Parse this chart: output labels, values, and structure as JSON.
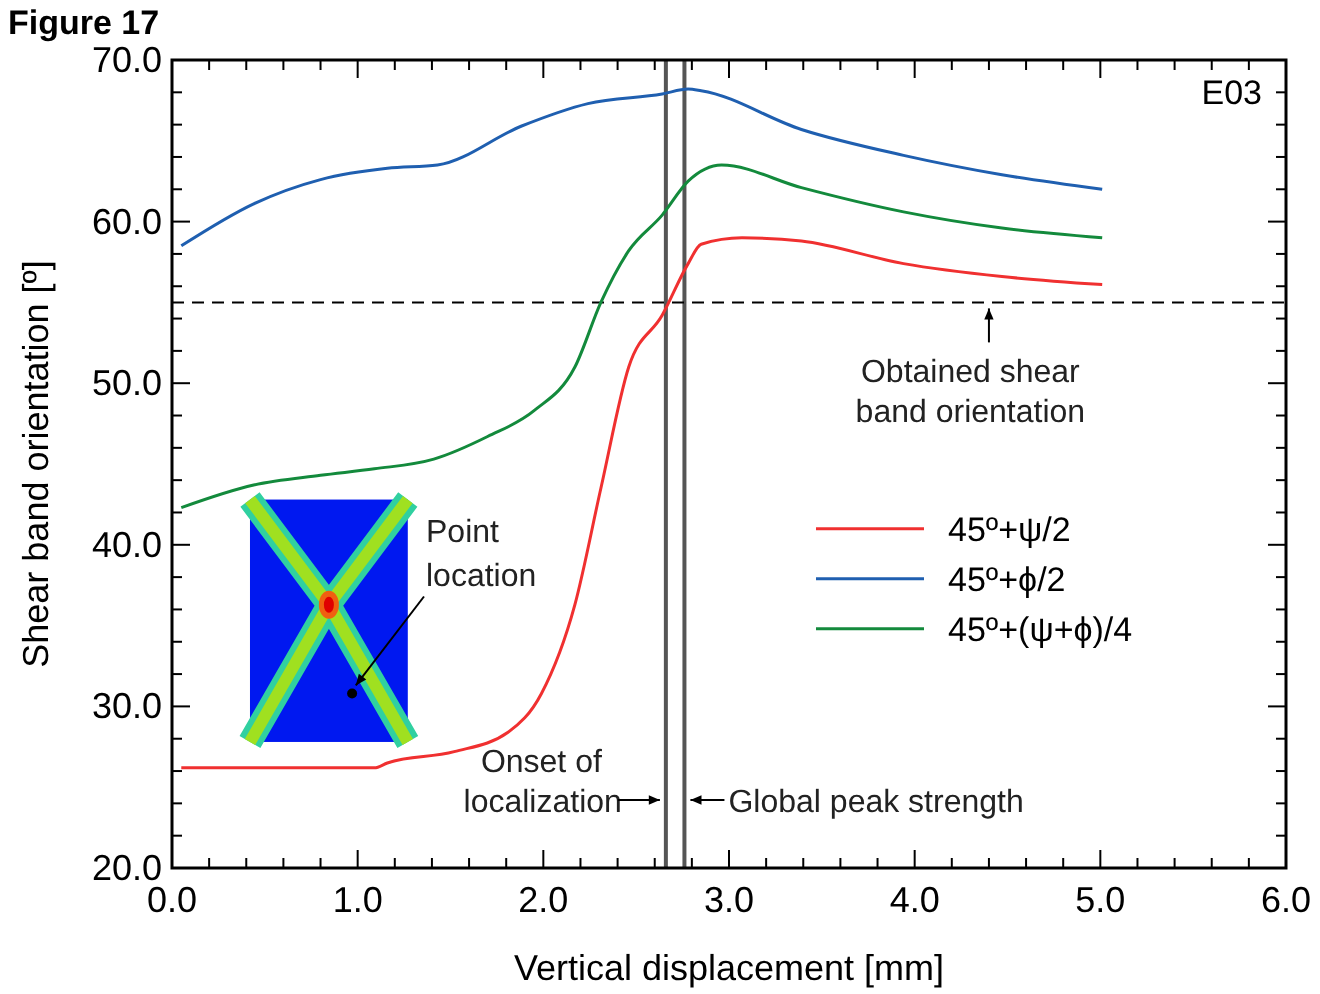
{
  "chart_data": {
    "type": "line",
    "title": "Figure 17",
    "xlabel": "Vertical displacement [mm]",
    "ylabel": "Shear band orientation [º]",
    "annotations": [
      "E03",
      "Point location"
    ],
    "xlim": [
      0,
      6
    ],
    "ylim": [
      20,
      70
    ],
    "xticks": [
      {
        "value": 0,
        "label": "0.0"
      },
      {
        "value": 1,
        "label": "1.0"
      },
      {
        "value": 2,
        "label": "2.0"
      },
      {
        "value": 3,
        "label": "3.0"
      },
      {
        "value": 4,
        "label": "4.0"
      },
      {
        "value": 5,
        "label": "5.0"
      },
      {
        "value": 6,
        "label": "6.0"
      },
      {
        "value": 0.2,
        "label": null
      },
      {
        "value": 0.4,
        "label": null
      },
      {
        "value": 0.6,
        "label": null
      },
      {
        "value": 0.8,
        "label": null
      },
      {
        "value": 1.2,
        "label": null
      },
      {
        "value": 1.4,
        "label": null
      },
      {
        "value": 1.6,
        "label": null
      },
      {
        "value": 1.8,
        "label": null
      },
      {
        "value": 2.2,
        "label": null
      },
      {
        "value": 2.4,
        "label": null
      },
      {
        "value": 2.6,
        "label": null
      },
      {
        "value": 2.8,
        "label": null
      },
      {
        "value": 3.2,
        "label": null
      },
      {
        "value": 3.4,
        "label": null
      },
      {
        "value": 3.6,
        "label": null
      },
      {
        "value": 3.8,
        "label": null
      },
      {
        "value": 4.2,
        "label": null
      },
      {
        "value": 4.4,
        "label": null
      },
      {
        "value": 4.6,
        "label": null
      },
      {
        "value": 4.8,
        "label": null
      },
      {
        "value": 5.2,
        "label": null
      },
      {
        "value": 5.4,
        "label": null
      },
      {
        "value": 5.6,
        "label": null
      },
      {
        "value": 5.8,
        "label": null
      }
    ],
    "yticks": [
      {
        "value": 20,
        "label": "20.0"
      },
      {
        "value": 30,
        "label": "30.0"
      },
      {
        "value": 40,
        "label": "40.0"
      },
      {
        "value": 50,
        "label": "50.0"
      },
      {
        "value": 60,
        "label": "60.0"
      },
      {
        "value": 70,
        "label": "70.0"
      },
      {
        "value": 22,
        "label": null
      },
      {
        "value": 24,
        "label": null
      },
      {
        "value": 26,
        "label": null
      },
      {
        "value": 28,
        "label": null
      },
      {
        "value": 32,
        "label": null
      },
      {
        "value": 34,
        "label": null
      },
      {
        "value": 36,
        "label": null
      },
      {
        "value": 38,
        "label": null
      },
      {
        "value": 42,
        "label": null
      },
      {
        "value": 44,
        "label": null
      },
      {
        "value": 46,
        "label": null
      },
      {
        "value": 48,
        "label": null
      },
      {
        "value": 52,
        "label": null
      },
      {
        "value": 54,
        "label": null
      },
      {
        "value": 56,
        "label": null
      },
      {
        "value": 58,
        "label": null
      },
      {
        "value": 62,
        "label": null
      },
      {
        "value": 64,
        "label": null
      },
      {
        "value": 66,
        "label": null
      },
      {
        "value": 68,
        "label": null
      }
    ],
    "grid": false,
    "legend": "right",
    "marker": "none",
    "line_style": "solid",
    "ref_lines": [
      {
        "axis": "x",
        "value": 2.66,
        "label": "Onset of localization",
        "color": "#555555",
        "line_style": "solid"
      },
      {
        "axis": "x",
        "value": 2.76,
        "label": "Global peak strength",
        "color": "#555555",
        "line_style": "solid"
      },
      {
        "axis": "y",
        "value": 55,
        "label": "Obtained shear band orientation",
        "color": "#000000",
        "line_style": "dashed"
      }
    ],
    "series": [
      {
        "name": "45º+ψ/2",
        "color": "#f03030",
        "x": [
          0.05,
          1.09,
          1.16,
          1.52,
          1.81,
          1.99,
          2.17,
          2.31,
          2.46,
          2.64,
          2.78,
          2.85,
          3.07,
          3.39,
          3.94,
          4.47,
          5.01
        ],
        "values": [
          26.2,
          26.2,
          26.5,
          27.2,
          28.4,
          30.8,
          36.3,
          43.5,
          51.0,
          54.2,
          57.4,
          58.6,
          59.0,
          58.8,
          57.4,
          56.6,
          56.1
        ]
      },
      {
        "name": "45º+ϕ/2",
        "color": "#1f5fb0",
        "x": [
          0.05,
          0.44,
          0.8,
          1.16,
          1.43,
          1.88,
          2.24,
          2.64,
          2.78,
          2.85,
          3.39,
          3.94,
          4.47,
          5.01
        ],
        "values": [
          58.5,
          61.1,
          62.6,
          63.3,
          63.5,
          65.9,
          67.3,
          67.9,
          68.2,
          68.1,
          65.7,
          64.1,
          62.9,
          62.0
        ]
      },
      {
        "name": "45º+(ψ+ϕ)/4",
        "color": "#138a3c",
        "x": [
          0.05,
          0.44,
          0.8,
          1.09,
          1.41,
          1.7,
          1.95,
          2.17,
          2.31,
          2.46,
          2.64,
          2.78,
          2.96,
          3.39,
          3.94,
          4.47,
          5.01
        ],
        "values": [
          42.3,
          43.7,
          44.3,
          44.7,
          45.3,
          46.7,
          48.3,
          51.0,
          55.0,
          58.2,
          60.4,
          62.5,
          63.5,
          62.1,
          60.6,
          59.6,
          59.0
        ]
      }
    ]
  }
}
